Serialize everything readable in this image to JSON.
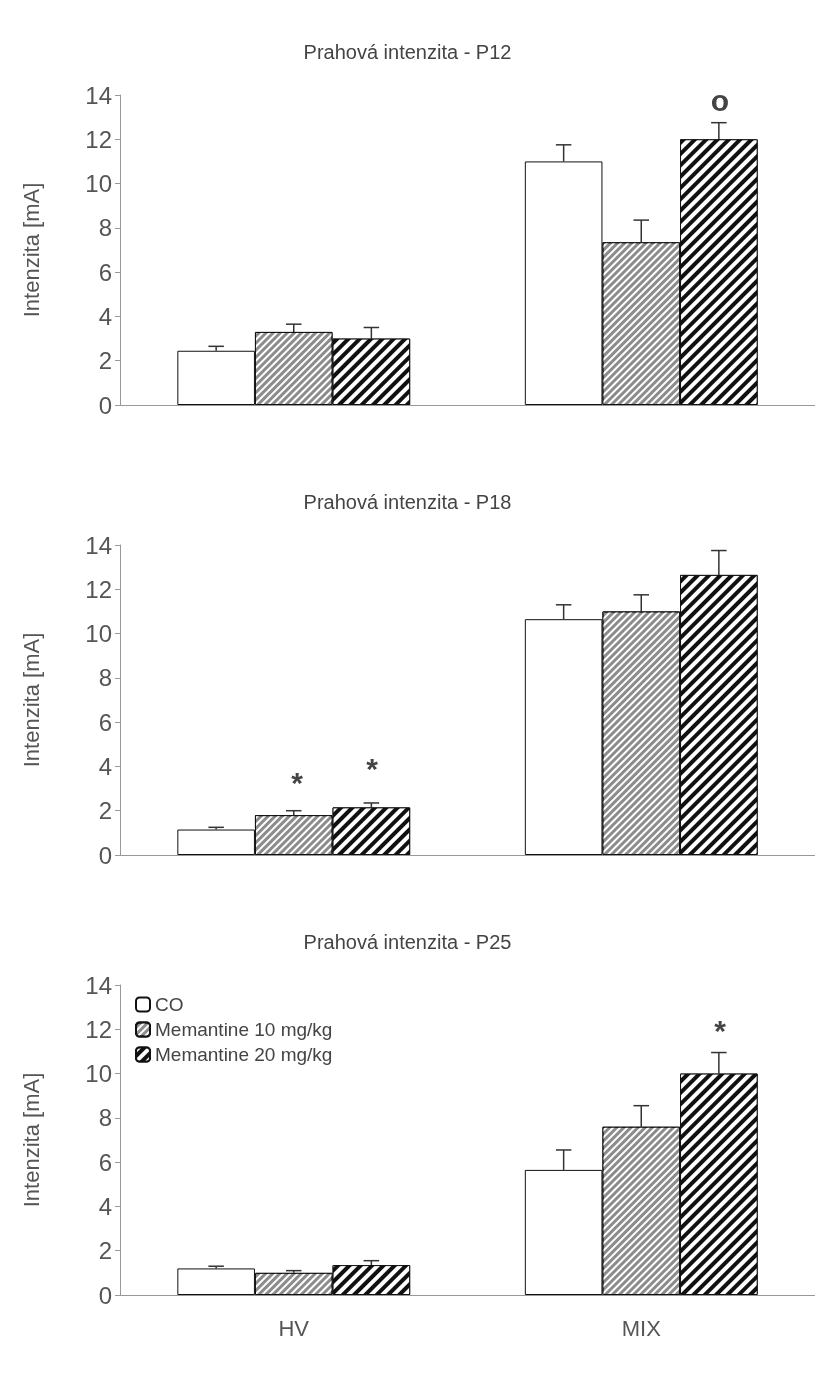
{
  "chart_data": [
    {
      "type": "bar",
      "title": "Prahová intenzita - P12",
      "ylabel": "Intenzita [mA]",
      "categories": [
        null,
        null
      ],
      "ylim": [
        0,
        14
      ],
      "yticks": [
        0,
        2,
        4,
        6,
        8,
        10,
        12,
        14
      ],
      "grid": false,
      "legend": false,
      "tick_labels": "y",
      "series": [
        {
          "color": "#ffffff",
          "values": [
            2.45,
            11.0
          ],
          "errors": [
            [
              2.45,
              2.65
            ],
            [
              11.0,
              11.75
            ]
          ]
        },
        {
          "color": "#8c8c8c",
          "values": [
            3.3,
            7.35
          ],
          "errors": [
            [
              3.3,
              3.65
            ],
            [
              7.35,
              8.35
            ]
          ]
        },
        {
          "color": "#111111",
          "values": [
            3.0,
            12.0
          ],
          "errors": [
            [
              3.0,
              3.5
            ],
            [
              12.0,
              12.75
            ]
          ]
        }
      ],
      "annotations": [
        "o"
      ]
    },
    {
      "type": "bar",
      "title": "Prahová intenzita - P18",
      "ylabel": "Intenzita [mA]",
      "categories": [
        null,
        null
      ],
      "ylim": [
        0,
        14
      ],
      "yticks": [
        0,
        2,
        4,
        6,
        8,
        10,
        12,
        14
      ],
      "grid": false,
      "legend": false,
      "tick_labels": "y",
      "series": [
        {
          "color": "#ffffff",
          "values": [
            1.15,
            10.65
          ],
          "errors": [
            [
              1.15,
              1.25
            ],
            [
              10.65,
              11.3
            ]
          ]
        },
        {
          "color": "#8c8c8c",
          "values": [
            1.8,
            11.0
          ],
          "errors": [
            [
              1.8,
              2.0
            ],
            [
              11.0,
              11.75
            ]
          ]
        },
        {
          "color": "#111111",
          "values": [
            2.15,
            12.65
          ],
          "errors": [
            [
              2.15,
              2.35
            ],
            [
              12.65,
              13.75
            ]
          ]
        }
      ],
      "annotations": [
        "*",
        "*"
      ]
    },
    {
      "type": "bar",
      "title": "Prahová intenzita - P25",
      "ylabel": "Intenzita [mA]",
      "categories": [
        "HV",
        "MIX"
      ],
      "ylim": [
        0,
        14
      ],
      "yticks": [
        0,
        2,
        4,
        6,
        8,
        10,
        12,
        14
      ],
      "grid": false,
      "legend": "top left",
      "series": [
        {
          "name": "CO",
          "color": "#ffffff",
          "values": [
            1.2,
            5.65
          ],
          "errors": [
            [
              1.2,
              1.3
            ],
            [
              5.65,
              6.55
            ]
          ]
        },
        {
          "name": "Memantine 10 mg/kg",
          "color": "#8c8c8c",
          "values": [
            1.0,
            7.6
          ],
          "errors": [
            [
              1.0,
              1.1
            ],
            [
              7.6,
              8.55
            ]
          ]
        },
        {
          "name": "Memantine 20 mg/kg",
          "color": "#111111",
          "values": [
            1.35,
            10.0
          ],
          "errors": [
            [
              1.35,
              1.55
            ],
            [
              10.0,
              10.95
            ]
          ]
        }
      ],
      "annotations": [
        "*"
      ]
    }
  ]
}
